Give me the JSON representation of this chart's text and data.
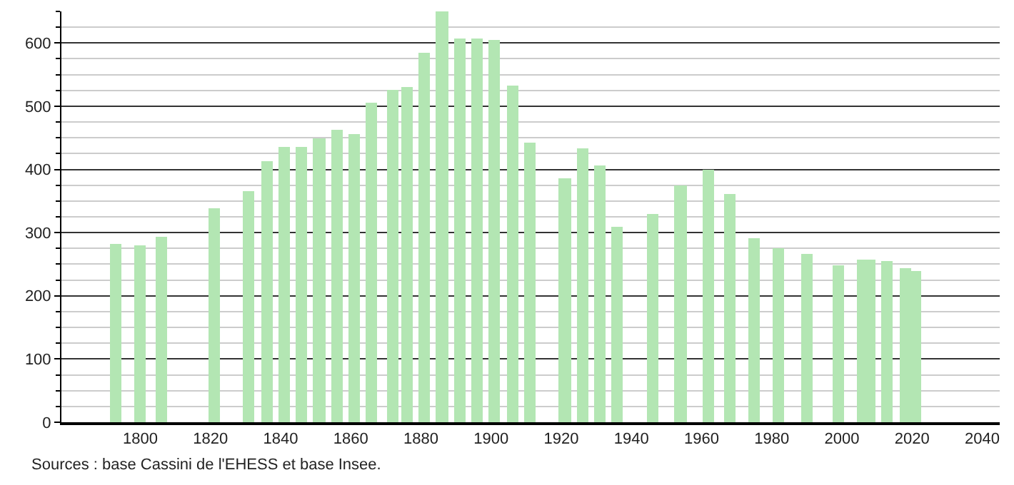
{
  "chart_data": {
    "type": "bar",
    "x": [
      1793,
      1800,
      1806,
      1821,
      1831,
      1836,
      1841,
      1846,
      1851,
      1856,
      1861,
      1866,
      1872,
      1876,
      1881,
      1886,
      1891,
      1896,
      1901,
      1906,
      1911,
      1921,
      1926,
      1931,
      1936,
      1946,
      1954,
      1962,
      1968,
      1975,
      1982,
      1990,
      1999,
      2006,
      2008,
      2013,
      2018,
      2021
    ],
    "values": [
      283,
      279,
      294,
      339,
      366,
      413,
      436,
      436,
      449,
      463,
      456,
      505,
      525,
      530,
      584,
      649,
      607,
      607,
      604,
      533,
      443,
      387,
      434,
      407,
      310,
      330,
      374,
      399,
      362,
      292,
      276,
      267,
      248,
      258,
      258,
      255,
      243,
      240
    ],
    "color": "#b3e6b3",
    "xlim": [
      1777.5,
      2045
    ],
    "xticks": [
      1800,
      1820,
      1840,
      1860,
      1880,
      1900,
      1920,
      1940,
      1960,
      1980,
      2000,
      2020,
      2040
    ],
    "ylim": [
      0,
      650
    ],
    "yticks": [
      0,
      100,
      200,
      300,
      400,
      500,
      600
    ],
    "grid": "y",
    "annotations": [
      "Sources : base Cassini de l'EHESS et base Insee."
    ]
  }
}
